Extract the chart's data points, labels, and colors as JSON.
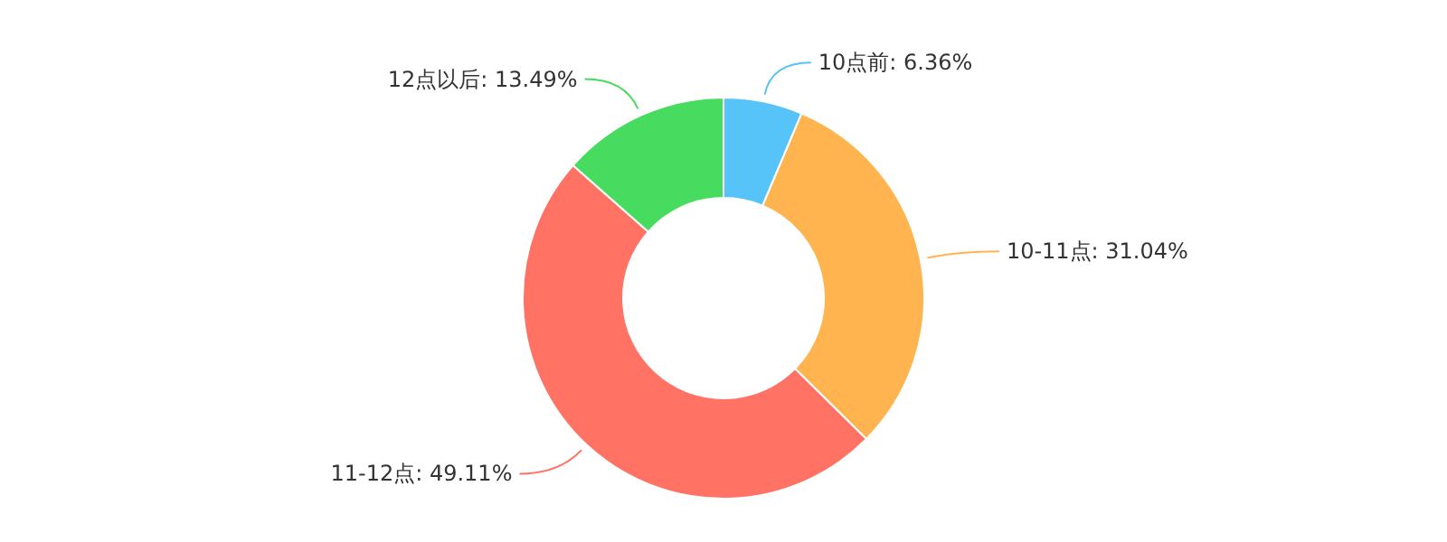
{
  "chart_data": {
    "type": "donut",
    "categories": [
      "10点前",
      "10-11点",
      "11-12点",
      "12点以后"
    ],
    "values": [
      6.36,
      31.04,
      49.11,
      13.49
    ],
    "value_labels": [
      "6.36%",
      "31.04%",
      "49.11%",
      "13.49%"
    ],
    "colors": [
      "#56c4f9",
      "#ffb44f",
      "#ff7264",
      "#47dc5f"
    ]
  }
}
